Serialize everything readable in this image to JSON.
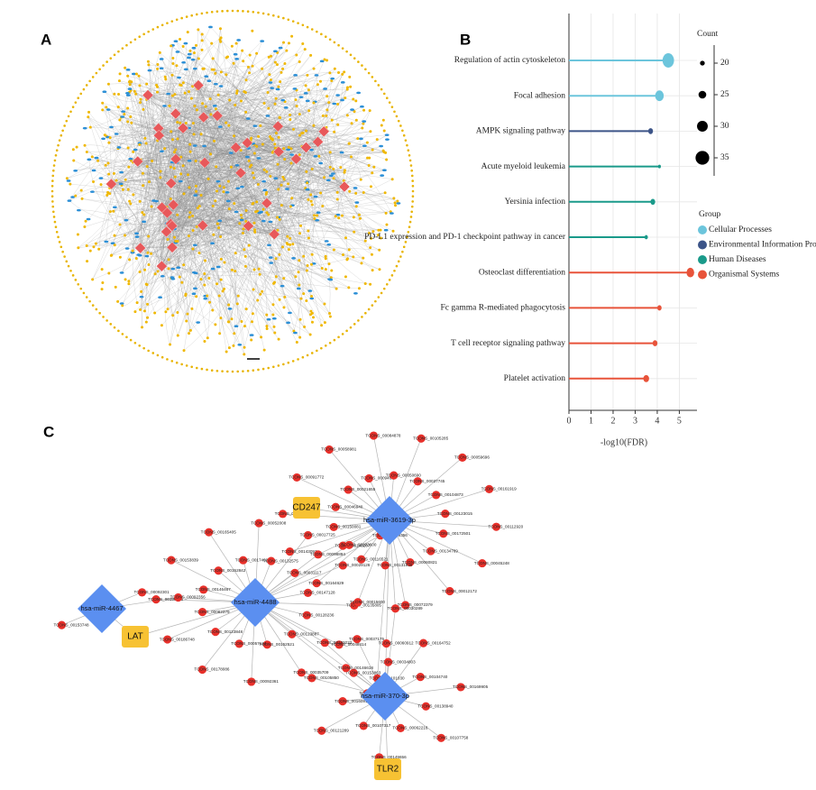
{
  "panel_labels": [
    "A",
    "B",
    "C"
  ],
  "chart_data": {
    "type": "lollipop",
    "xlabel": "-log10(FDR)",
    "categories": [
      "Regulation of actin cytoskeleton",
      "Focal adhesion",
      "AMPK signaling pathway",
      "Acute myeloid leukemia",
      "Yersinia infection",
      "PD-L1 expression and PD-1 checkpoint pathway in cancer",
      "Osteoclast differentiation",
      "Fc gamma R-mediated phagocytosis",
      "T cell receptor signaling pathway",
      "Platelet activation"
    ],
    "values": [
      4.5,
      4.1,
      3.7,
      4.1,
      3.8,
      3.5,
      5.5,
      4.1,
      3.9,
      3.5
    ],
    "counts": [
      36,
      30,
      22,
      18,
      22,
      19,
      28,
      21,
      22,
      24
    ],
    "category_group": [
      0,
      0,
      1,
      2,
      2,
      2,
      3,
      3,
      3,
      3
    ],
    "group_legend": {
      "title": "Group",
      "groups": [
        {
          "name": "Cellular Processes",
          "color": "#6cc5dc"
        },
        {
          "name": "Environmental Information Processing",
          "color": "#3c5488"
        },
        {
          "name": "Human Diseases",
          "color": "#1a9a8a"
        },
        {
          "name": "Organismal Systems",
          "color": "#e8533a"
        }
      ]
    },
    "size_legend": {
      "title": "Count",
      "values": [
        20,
        25,
        30,
        35
      ]
    },
    "xlim": [
      0,
      5.8
    ],
    "xticks": [
      0,
      1,
      2,
      3,
      4,
      5
    ],
    "grid": true
  },
  "network_c": {
    "hubs": [
      "hsa-miR-4467",
      "hsa-miR-4488",
      "hsa-miR-3619-3p",
      "hsa-miR-370-3p"
    ],
    "genes": [
      {
        "label": "CD247",
        "hubs": [
          2
        ]
      },
      {
        "label": "LAT",
        "hubs": [
          0,
          1
        ]
      },
      {
        "label": "TLR2",
        "hubs": [
          3
        ]
      }
    ],
    "targets": [
      [
        "TCONS_00153748",
        "TCONS_00092301"
      ],
      [
        "TCONS_00128236",
        "TCONS_00048414",
        "TCONS_00123887",
        "TCONS_00035709",
        "TCONS_00152521",
        "TCONS_00092361",
        "TCONS_00057124",
        "TCONS_00178086",
        "TCONS_00123848",
        "TCONS_00186748",
        "TCONS_00082379",
        "TCONS_00190015",
        "TCONS_00146467",
        "TCONS_00153839",
        "TCONS_00152842",
        "TCONS_00165405",
        "TCONS_00174021",
        "TCONS_00052008",
        "TCONS_00132575",
        "TCONS_00017725",
        "TCONS_00031117",
        "TCONS_00029126",
        "TCONS_00147128",
        "TCONS_00135805"
      ],
      [
        "TCONS_00172501",
        "TCONS_00045248",
        "TCONS_00134769",
        "TCONS_00012172",
        "TCONS_00060821",
        "TCONS_00072379",
        "TCONS_00131939",
        "TCONS_00015600",
        "TCONS_00116521",
        "TCONS_00164629",
        "TCONS_00143207",
        "TCONS_00143093",
        "TCONS_00150081",
        "TCONS_00143606",
        "TCONS_00046940",
        "TCONS_00091772",
        "TCONS_00021655",
        "TCONS_00058981",
        "TCONS_00094617",
        "TCONS_00084878",
        "TCONS_00050690",
        "TCONS_00105285",
        "TCONS_00037745",
        "TCONS_00059696",
        "TCONS_00104873",
        "TCONS_00161919",
        "TCONS_00123015",
        "TCONS_00112920"
      ],
      [
        "TCONS_00138940",
        "TCONS_00107758",
        "TCONS_00062216",
        "TCONS_00149656",
        "TCONS_00107317",
        "TCONS_00121289",
        "TCONS_00160914",
        "TCONS_00105850",
        "TCONS_00153863",
        "TCONS_00037175",
        "TCONS_00034803",
        "TCONS_00164752",
        "TCONS_00104740",
        "TCONS_00169905"
      ]
    ],
    "shared": [
      {
        "label": "TCONS_00092356",
        "hubs": [
          0,
          1
        ]
      },
      {
        "label": "TCONS_00098894",
        "hubs": [
          1,
          2
        ]
      },
      {
        "label": "TCONS_00103600",
        "hubs": [
          1,
          2
        ]
      },
      {
        "label": "TCONS_00149356",
        "hubs": [
          1,
          2
        ]
      },
      {
        "label": "TCONS_00030289",
        "hubs": [
          2,
          3
        ]
      },
      {
        "label": "TCONS_00060912",
        "hubs": [
          2,
          3
        ]
      },
      {
        "label": "TCONS_00101030",
        "hubs": [
          2,
          3
        ]
      },
      {
        "label": "TCONS_00159222",
        "hubs": [
          1,
          3
        ]
      },
      {
        "label": "TCONS_00146618",
        "hubs": [
          1,
          3
        ]
      },
      {
        "label": "TCONS_00140626",
        "hubs": [
          1,
          3
        ]
      }
    ]
  }
}
